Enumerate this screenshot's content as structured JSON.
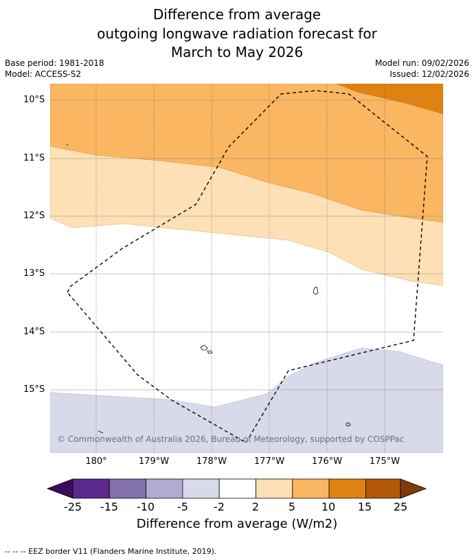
{
  "title": {
    "line1": "Difference from average",
    "line2": "outgoing longwave radiation forecast for",
    "line3": "March to May 2026"
  },
  "meta": {
    "base_period": "Base period: 1981-2018",
    "model": "Model: ACCESS-S2",
    "model_run": "Model run: 09/02/2026",
    "issued": "Issued: 12/02/2026"
  },
  "axes": {
    "lat_labels": [
      "10°S",
      "11°S",
      "12°S",
      "13°S",
      "14°S",
      "15°S"
    ],
    "lon_labels": [
      "180°",
      "179°W",
      "178°W",
      "177°W",
      "176°W",
      "175°W"
    ]
  },
  "copyright": "© Commonwealth of Australia 2026, Bureau of Meteorology, supported by COSPPac",
  "colorbar": {
    "ticks": [
      "-25",
      "-15",
      "-10",
      "-5",
      "-2",
      "2",
      "5",
      "10",
      "15",
      "25"
    ],
    "label": "Difference from average (W/m2)",
    "colors": [
      "#3f0a5c",
      "#5c2a8c",
      "#8371ae",
      "#b2aad2",
      "#d8d9ea",
      "#ffffff",
      "#fde0b5",
      "#fbb661",
      "#e0820f",
      "#b35806",
      "#7f3b08"
    ]
  },
  "footer": "--  --  -- EEZ border V11 (Flanders Marine Institute, 2019)."
}
